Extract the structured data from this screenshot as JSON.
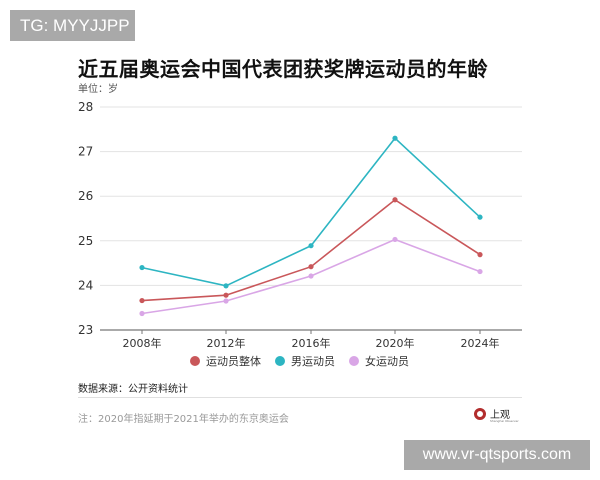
{
  "watermarks": {
    "top": "TG: MYYJJPP",
    "bottom": "www.vr-qtsports.com"
  },
  "header": {
    "title": "近五届奥运会中国代表团获奖牌运动员的年龄",
    "unit": "单位：岁"
  },
  "footer": {
    "source": "数据来源：公开资料统计",
    "note": "注：2020年指延期于2021年举办的东京奥运会",
    "logo_text": "上观",
    "logo_sub": "Shanghai Observer"
  },
  "legend": [
    {
      "label": "运动员整体",
      "color": "#c9575a"
    },
    {
      "label": "男运动员",
      "color": "#2db5c2"
    },
    {
      "label": "女运动员",
      "color": "#d9a6e6"
    }
  ],
  "chart_data": {
    "type": "line",
    "title": "近五届奥运会中国代表团获奖牌运动员的年龄",
    "subtitle": "单位：岁",
    "xlabel": "",
    "ylabel": "岁",
    "categories": [
      "2008年",
      "2012年",
      "2016年",
      "2020年",
      "2024年"
    ],
    "ylim": [
      23,
      28
    ],
    "yticks": [
      23,
      24,
      25,
      26,
      27,
      28
    ],
    "grid": true,
    "legend_position": "bottom",
    "series": [
      {
        "name": "运动员整体",
        "color": "#c9575a",
        "values": [
          23.66,
          23.78,
          24.42,
          25.92,
          24.69
        ]
      },
      {
        "name": "男运动员",
        "color": "#2db5c2",
        "values": [
          24.4,
          23.99,
          24.89,
          27.3,
          25.53
        ]
      },
      {
        "name": "女运动员",
        "color": "#d9a6e6",
        "values": [
          23.37,
          23.65,
          24.21,
          25.03,
          24.31
        ]
      }
    ],
    "source": "数据来源：公开资料统计",
    "annotation": "注：2020年指延期于2021年举办的东京奥运会"
  }
}
